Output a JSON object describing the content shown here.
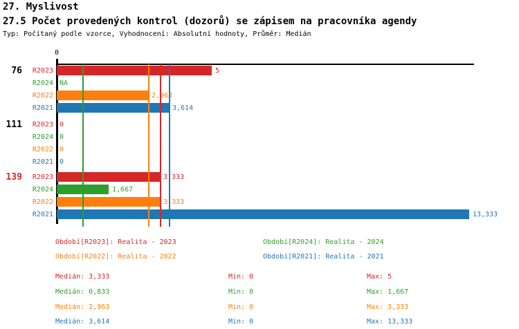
{
  "header": {
    "title_line1": "27. Myslivost",
    "title_line2": "27.5 Počet provedených kontrol (dozorů) se zápisem na pracovníka agendy",
    "meta": "Typ: Počítaný podle vzorce, Vyhodnocení: Absolutní hodnoty, Průměr: Medián"
  },
  "colors": {
    "r2023_red": "#d62728",
    "r2024_green": "#2ca02c",
    "r2022_orange": "#ff7f0e",
    "r2021_blue": "#1f77b4",
    "axis_black": "#000000"
  },
  "chart_data": {
    "type": "bar",
    "orientation": "horizontal",
    "x_axis": {
      "origin_tick_label": "0",
      "min": 0
    },
    "series": [
      {
        "name": "R2023",
        "color": "#d62728",
        "median": 3.333,
        "min": 0,
        "max": 5
      },
      {
        "name": "R2024",
        "color": "#2ca02c",
        "median": 0.833,
        "min": 0,
        "max": 1.667
      },
      {
        "name": "R2022",
        "color": "#ff7f0e",
        "median": 2.963,
        "min": 0,
        "max": 3.333
      },
      {
        "name": "R2021",
        "color": "#1f77b4",
        "median": 3.614,
        "min": 0,
        "max": 13.333
      }
    ],
    "groups": [
      {
        "label": "76",
        "label_color": "#000000",
        "values": [
          5,
          null,
          2.963,
          3.614
        ],
        "value_labels": [
          "5",
          "NA",
          "2,963",
          "3,614"
        ]
      },
      {
        "label": "111",
        "label_color": "#000000",
        "values": [
          0,
          0,
          0,
          0
        ],
        "value_labels": [
          "0",
          "0",
          "0",
          "0"
        ]
      },
      {
        "label": "139",
        "label_color": "#d62728",
        "values": [
          3.333,
          1.667,
          3.333,
          13.333
        ],
        "value_labels": [
          "3,333",
          "1,667",
          "3,333",
          "13,333"
        ]
      }
    ],
    "median_lines": [
      {
        "series": "R2024",
        "value": 0.833,
        "color": "#2ca02c"
      },
      {
        "series": "R2022",
        "value": 2.963,
        "color": "#ff7f0e"
      },
      {
        "series": "R2023",
        "value": 3.333,
        "color": "#d62728"
      },
      {
        "series": "R2021",
        "value": 3.614,
        "color": "#1f77b4"
      }
    ]
  },
  "legend": {
    "items": [
      {
        "label": "Období[R2023]: Realita - 2023",
        "color": "#d62728"
      },
      {
        "label": "Období[R2024]: Realita - 2024",
        "color": "#2ca02c"
      },
      {
        "label": "Období[R2022]: Realita - 2022",
        "color": "#ff7f0e"
      },
      {
        "label": "Období[R2021]: Realita - 2021",
        "color": "#1f77b4"
      }
    ]
  },
  "stats": {
    "rows": [
      {
        "color": "#d62728",
        "median": "Medián: 3,333",
        "min": "Min: 0",
        "max": "Max: 5"
      },
      {
        "color": "#2ca02c",
        "median": "Medián: 0,833",
        "min": "Min: 0",
        "max": "Max: 1,667"
      },
      {
        "color": "#ff7f0e",
        "median": "Medián: 2,963",
        "min": "Min: 0",
        "max": "Max: 3,333"
      },
      {
        "color": "#1f77b4",
        "median": "Medián: 3,614",
        "min": "Min: 0",
        "max": "Max: 13,333"
      }
    ]
  }
}
